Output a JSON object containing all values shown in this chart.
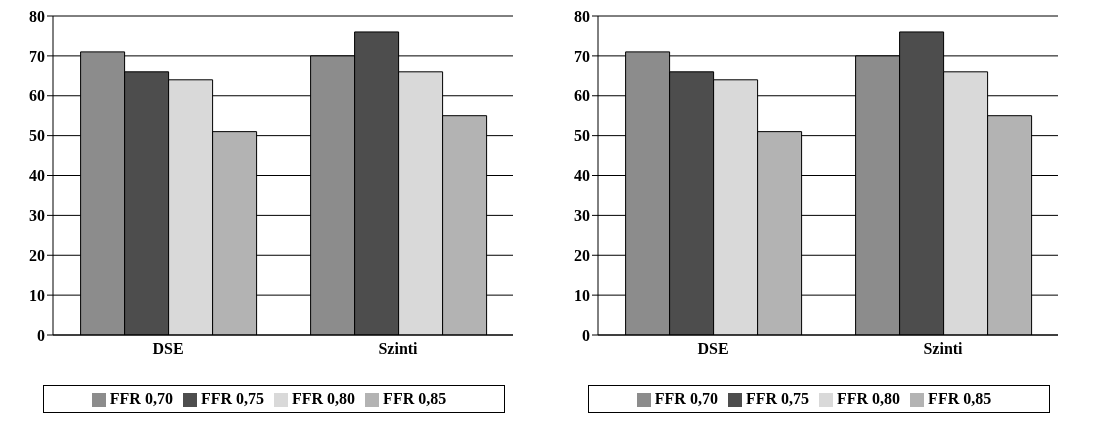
{
  "chart_data": [
    {
      "type": "bar",
      "categories": [
        "DSE",
        "Szinti"
      ],
      "series": [
        {
          "name": "FFR 0,70",
          "color": "#8c8c8c",
          "values": [
            71,
            70
          ]
        },
        {
          "name": "FFR 0,75",
          "color": "#4d4d4d",
          "values": [
            66,
            76
          ]
        },
        {
          "name": "FFR 0,80",
          "color": "#d9d9d9",
          "values": [
            64,
            66
          ]
        },
        {
          "name": "FFR 0,85",
          "color": "#b3b3b3",
          "values": [
            51,
            55
          ]
        }
      ],
      "ylim": [
        0,
        80
      ],
      "yticks": [
        0,
        10,
        20,
        30,
        40,
        50,
        60,
        70,
        80
      ],
      "grid": "y",
      "legend": "bottom"
    },
    {
      "type": "bar",
      "categories": [
        "DSE",
        "Szinti"
      ],
      "series": [
        {
          "name": "FFR 0,70",
          "color": "#8c8c8c",
          "values": [
            71,
            70
          ]
        },
        {
          "name": "FFR 0,75",
          "color": "#4d4d4d",
          "values": [
            66,
            76
          ]
        },
        {
          "name": "FFR 0,80",
          "color": "#d9d9d9",
          "values": [
            64,
            66
          ]
        },
        {
          "name": "FFR 0,85",
          "color": "#b3b3b3",
          "values": [
            51,
            55
          ]
        }
      ],
      "ylim": [
        0,
        80
      ],
      "yticks": [
        0,
        10,
        20,
        30,
        40,
        50,
        60,
        70,
        80
      ],
      "grid": "y",
      "legend": "bottom"
    }
  ]
}
